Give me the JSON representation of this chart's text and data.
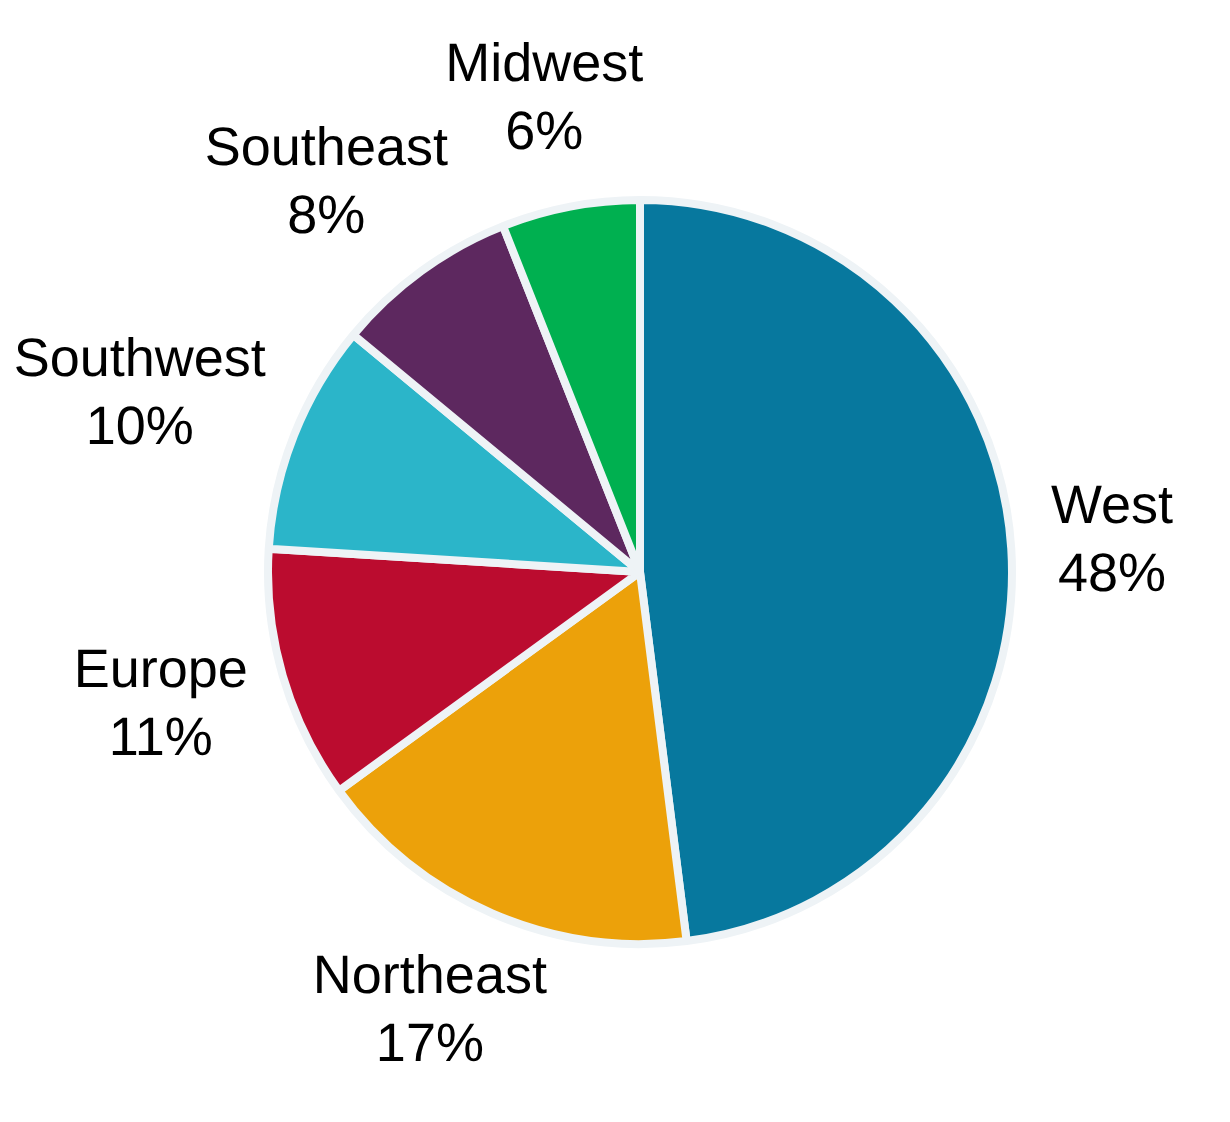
{
  "chart_data": {
    "type": "pie",
    "categories": [
      "West",
      "Northeast",
      "Europe",
      "Southwest",
      "Southeast",
      "Midwest"
    ],
    "values": [
      48,
      17,
      11,
      10,
      8,
      6
    ],
    "colors": [
      "#07789e",
      "#eca10a",
      "#bb0c2f",
      "#2bb5c9",
      "#5d285f",
      "#00b050"
    ],
    "value_labels": [
      "48%",
      "17%",
      "11%",
      "10%",
      "8%",
      "6%"
    ]
  }
}
